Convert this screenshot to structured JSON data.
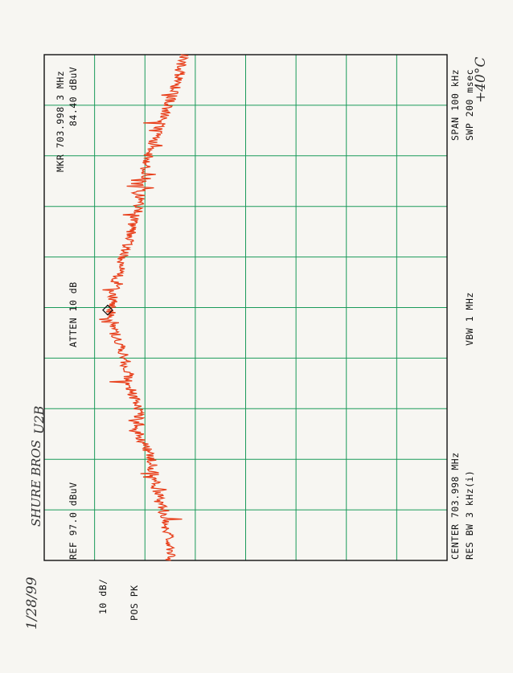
{
  "chart_data": {
    "type": "line",
    "title": "",
    "x": {
      "label_center": "CENTER 703.998 MHz",
      "span": "SPAN 100 kHz",
      "divisions": 10
    },
    "y": {
      "ref_level": "REF  97.0 dBuV",
      "scale": "10 dB/",
      "divisions": 8,
      "ylim": [
        17.0,
        97.0
      ]
    },
    "marker": {
      "label_line1": "MKR 703.998 3 MHz",
      "label_line2": "84.40 dBuV",
      "x_div": 4.95,
      "level_dbuv": 84.4
    },
    "series": [
      {
        "x_div": [
          0.0,
          0.5,
          1.0,
          1.5,
          2.0,
          2.5,
          3.0,
          3.5,
          4.0,
          4.5,
          5.0,
          5.5,
          6.0,
          6.5,
          7.0,
          7.5,
          8.0,
          8.5,
          9.0,
          9.5,
          10.0
        ],
        "level_dbuv": [
          71.5,
          72.5,
          73.3,
          75.0,
          75.6,
          78.2,
          78.3,
          80.3,
          81.0,
          83.0,
          83.6,
          82.8,
          81.4,
          79.8,
          78.2,
          77.7,
          76.3,
          74.6,
          72.3,
          70.5,
          69.4
        ]
      }
    ],
    "settings": {
      "atten": "ATTEN 10 dB",
      "res_bw": "RES BW 3 kHz(i)",
      "vbw": "VBW 1 MHz",
      "swp": "SWP 200 msec",
      "detector": "POS PK"
    },
    "grid": true,
    "colors": {
      "trace": "#e8401c",
      "grid": "#1a9a5a",
      "border": "#111111"
    }
  },
  "annotations": {
    "date": "1/28/99",
    "device": "SHURE BROS",
    "model": "U2B",
    "temperature": "+40°C"
  }
}
